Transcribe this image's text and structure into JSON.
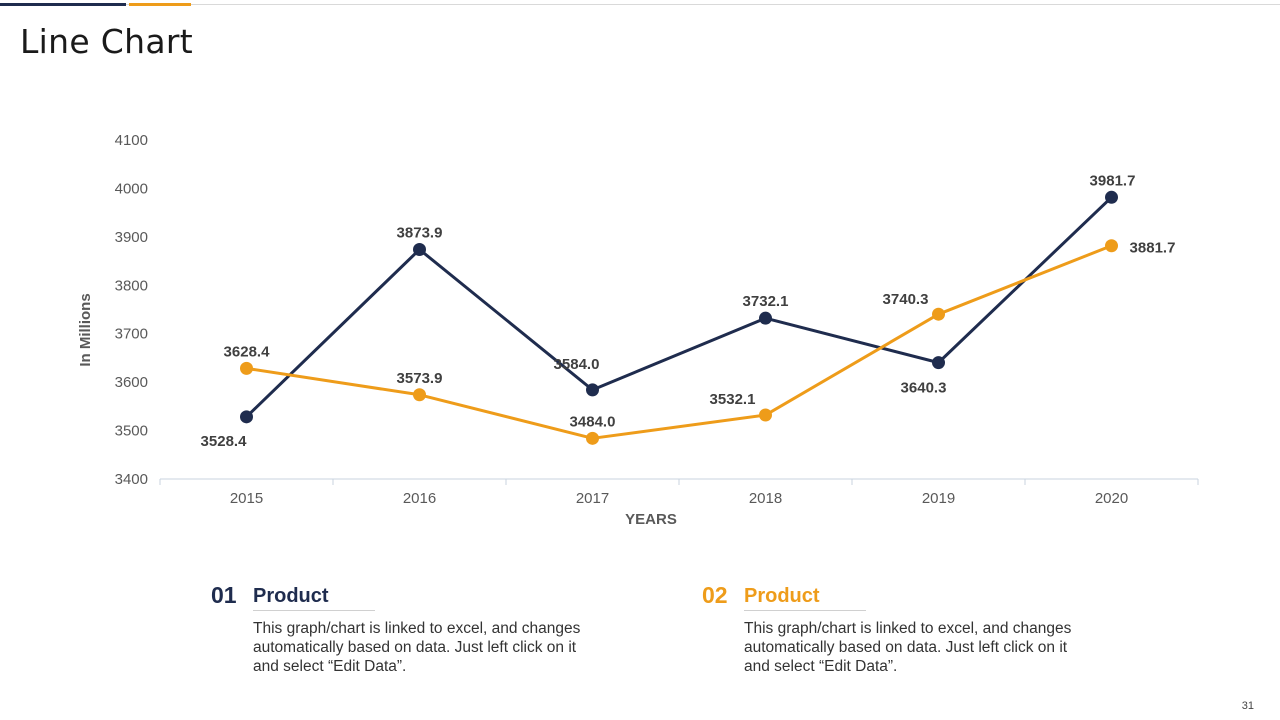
{
  "slide": {
    "title": "Line Chart",
    "page_number": "31"
  },
  "colors": {
    "navy": "#1f2c4e",
    "gold": "#ee9c1a"
  },
  "legend": [
    {
      "number": "01",
      "name": "Product",
      "description": "This graph/chart is linked to excel, and changes automatically based on data. Just left click on it and select “Edit Data”."
    },
    {
      "number": "02",
      "name": "Product",
      "description": "This graph/chart is linked to excel, and changes automatically based on data. Just left click on it and select “Edit Data”."
    }
  ],
  "chart_data": {
    "type": "line",
    "title": "",
    "xlabel": "YEARS",
    "ylabel": "In Millions",
    "ylim": [
      3400,
      4100
    ],
    "ytick_step": 100,
    "categories": [
      "2015",
      "2016",
      "2017",
      "2018",
      "2019",
      "2020"
    ],
    "series": [
      {
        "name": "Product 01",
        "color": "#1f2c4e",
        "values": [
          3528.4,
          3873.9,
          3584.0,
          3732.1,
          3640.3,
          3981.7
        ],
        "labels": [
          "3528.4",
          "3873.9",
          "3584.0",
          "3732.1",
          "3640.3",
          "3981.7"
        ]
      },
      {
        "name": "Product 02",
        "color": "#ee9c1a",
        "values": [
          3628.4,
          3573.9,
          3484.0,
          3532.1,
          3740.3,
          3881.7
        ],
        "labels": [
          "3628.4",
          "3573.9",
          "3484.0",
          "3532.1",
          "3740.3",
          "3881.7"
        ]
      }
    ],
    "grid": false,
    "legend": "bottom"
  }
}
